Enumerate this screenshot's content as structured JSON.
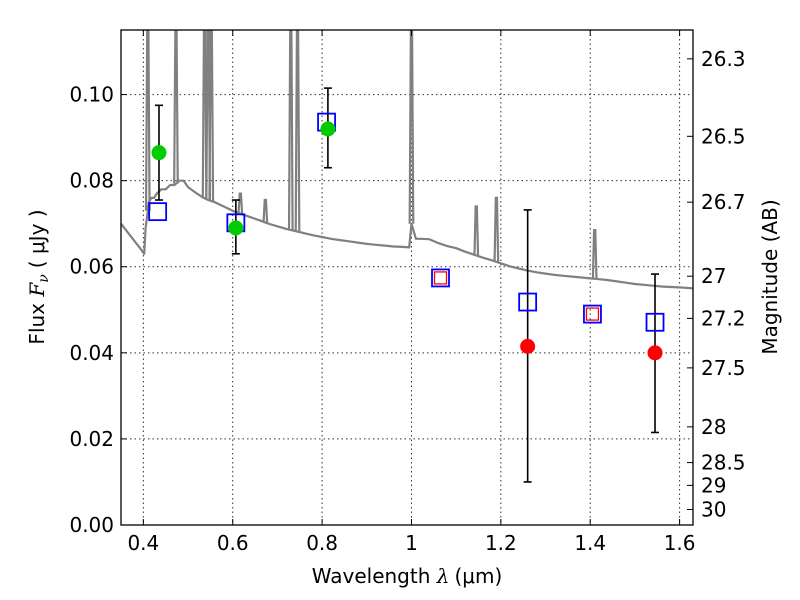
{
  "chart_data": {
    "type": "scatter",
    "title": "",
    "xlabel": {
      "prefix": "Wavelength ",
      "symbol": "λ",
      "unit": "(μm)"
    },
    "ylabel": {
      "prefix": "Flux ",
      "symbol": "F",
      "subscript": "ν",
      "unit": "( μJy )"
    },
    "y2label": "Magnitude (AB)",
    "xlim": [
      0.35,
      1.63
    ],
    "ylim": [
      0.0,
      0.115
    ],
    "x_ticks": [
      0.4,
      0.6,
      0.8,
      1.0,
      1.2,
      1.4,
      1.6
    ],
    "x_tick_labels": [
      "0.4",
      "0.6",
      "0.8",
      "1",
      "1.2",
      "1.4",
      "1.6"
    ],
    "y_ticks": [
      0.0,
      0.02,
      0.04,
      0.06,
      0.08,
      0.1
    ],
    "y_tick_labels": [
      "0.00",
      "0.02",
      "0.04",
      "0.06",
      "0.08",
      "0.10"
    ],
    "magnitude_ticks": [
      {
        "label": "26.3",
        "flux": 0.1083
      },
      {
        "label": "26.5",
        "flux": 0.0903
      },
      {
        "label": "26.7",
        "flux": 0.075
      },
      {
        "label": "27",
        "flux": 0.0578
      },
      {
        "label": "27.2",
        "flux": 0.048
      },
      {
        "label": "27.5",
        "flux": 0.0365
      },
      {
        "label": "28",
        "flux": 0.0228
      },
      {
        "label": "28.5",
        "flux": 0.0145
      },
      {
        "label": "29",
        "flux": 0.0092
      },
      {
        "label": "30",
        "flux": 0.0036
      }
    ],
    "grid": true,
    "series": [
      {
        "kind": "model-spectrum",
        "color": "#808080",
        "x": [
          0.35,
          0.38,
          0.395,
          0.402,
          0.405,
          0.41,
          0.412,
          0.418,
          0.424,
          0.43,
          0.44,
          0.45,
          0.46,
          0.47,
          0.48,
          0.49,
          0.5,
          0.52,
          0.535,
          0.545,
          0.56,
          0.58,
          0.6,
          0.62,
          0.64,
          0.66,
          0.68,
          0.69,
          0.7,
          0.72,
          0.74,
          0.76,
          0.78,
          0.8,
          0.82,
          0.84,
          0.86,
          0.88,
          0.9,
          0.92,
          0.94,
          0.96,
          0.98,
          0.995,
          1.0,
          1.01,
          1.02,
          1.04,
          1.06,
          1.08,
          1.1,
          1.12,
          1.14,
          1.16,
          1.18,
          1.2,
          1.22,
          1.24,
          1.26,
          1.28,
          1.3,
          1.32,
          1.34,
          1.36,
          1.38,
          1.4,
          1.42,
          1.44,
          1.46,
          1.48,
          1.5,
          1.52,
          1.54,
          1.56,
          1.58,
          1.6,
          1.63
        ],
        "y": [
          0.07,
          0.066,
          0.064,
          0.063,
          0.069,
          0.073,
          0.075,
          0.076,
          0.076,
          0.077,
          0.078,
          0.078,
          0.079,
          0.079,
          0.08,
          0.08,
          0.0785,
          0.077,
          0.076,
          0.0755,
          0.075,
          0.074,
          0.073,
          0.0722,
          0.0715,
          0.0708,
          0.07,
          0.0697,
          0.0694,
          0.0688,
          0.0683,
          0.0678,
          0.0673,
          0.0669,
          0.0665,
          0.0662,
          0.0659,
          0.0656,
          0.0653,
          0.0651,
          0.0649,
          0.0647,
          0.0646,
          0.0645,
          0.07,
          0.0665,
          0.0665,
          0.0664,
          0.0655,
          0.0648,
          0.0643,
          0.0635,
          0.0628,
          0.0621,
          0.0615,
          0.0608,
          0.0601,
          0.0596,
          0.0591,
          0.0587,
          0.0584,
          0.0581,
          0.0579,
          0.0577,
          0.0575,
          0.0573,
          0.0571,
          0.0569,
          0.0566,
          0.0563,
          0.056,
          0.0558,
          0.0556,
          0.0554,
          0.0553,
          0.0552,
          0.055
        ]
      },
      {
        "kind": "spectrum-emission-lines",
        "color": "#808080",
        "lines": [
          {
            "x": 0.41,
            "peak": 0.115
          },
          {
            "x": 0.473,
            "peak": 0.115
          },
          {
            "x": 0.537,
            "peak": 0.115
          },
          {
            "x": 0.545,
            "peak": 0.115
          },
          {
            "x": 0.552,
            "peak": 0.115
          },
          {
            "x": 0.617,
            "peak": 0.077
          },
          {
            "x": 0.673,
            "peak": 0.0755
          },
          {
            "x": 0.73,
            "peak": 0.115
          },
          {
            "x": 0.745,
            "peak": 0.115
          },
          {
            "x": 1.0,
            "peak": 0.115
          },
          {
            "x": 1.145,
            "peak": 0.074
          },
          {
            "x": 1.19,
            "peak": 0.076
          },
          {
            "x": 1.41,
            "peak": 0.0685
          }
        ]
      },
      {
        "kind": "model-photometry",
        "marker": "open-square",
        "color": "#0000ff",
        "x": [
          0.432,
          0.607,
          0.81,
          1.065,
          1.26,
          1.405,
          1.545
        ],
        "y": [
          0.0728,
          0.0702,
          0.0936,
          0.0574,
          0.0518,
          0.049,
          0.0471
        ]
      },
      {
        "kind": "detections",
        "marker": "filled-circle",
        "color": "#00cc00",
        "x": [
          0.435,
          0.607,
          0.813
        ],
        "y": [
          0.0865,
          0.069,
          0.092
        ],
        "err_low": [
          0.0755,
          0.063,
          0.083
        ],
        "err_high": [
          0.0975,
          0.0755,
          0.1015
        ]
      },
      {
        "kind": "upper-band-detections",
        "marker": "filled-circle",
        "color": "#ff0000",
        "x": [
          1.26,
          1.545
        ],
        "y": [
          0.0415,
          0.04
        ],
        "err_low": [
          0.01,
          0.0215
        ],
        "err_high": [
          0.0732,
          0.0583
        ]
      },
      {
        "kind": "nondetections",
        "marker": "open-square-small",
        "color": "#ff0000",
        "x": [
          1.065,
          1.405
        ],
        "y": [
          0.0574,
          0.049
        ]
      }
    ]
  }
}
